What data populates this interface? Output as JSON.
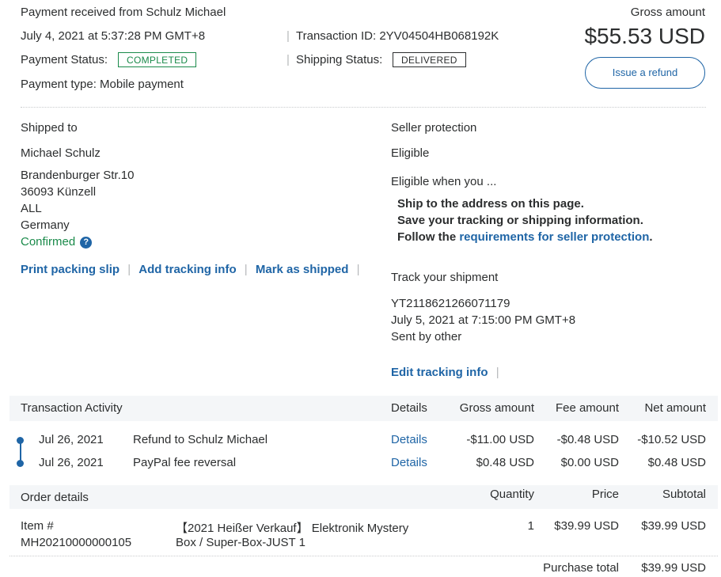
{
  "header": {
    "title": "Payment received from Schulz Michael",
    "datetime": "July 4, 2021 at 5:37:28 PM GMT+8",
    "transaction_id": "Transaction ID: 2YV04504HB068192K",
    "payment_status_label": "Payment Status:",
    "payment_status": "COMPLETED",
    "shipping_status_label": "Shipping Status:",
    "shipping_status": "DELIVERED",
    "payment_type": "Payment type: Mobile payment",
    "gross_amount_label": "Gross amount",
    "gross_amount": "$55.53 USD",
    "refund_button": "Issue a refund",
    "sep": "|"
  },
  "shipping": {
    "heading": "Shipped to",
    "name": "Michael Schulz",
    "address_lines": [
      "Brandenburger Str.10",
      "36093 Künzell",
      "ALL",
      "Germany"
    ],
    "confirmed": "Confirmed",
    "help_icon": "?",
    "actions": [
      "Print packing slip",
      "Add tracking info",
      "Mark as shipped"
    ]
  },
  "seller_protection": {
    "heading": "Seller protection",
    "status": "Eligible",
    "eligible_when": "Eligible when you ...",
    "conditions": [
      "Ship to the address on this page.",
      "Save your tracking or shipping information."
    ],
    "follow_prefix": "Follow the ",
    "follow_link": "requirements for seller protection",
    "follow_suffix": "."
  },
  "tracking": {
    "heading": "Track your shipment",
    "number": "YT2118621266071179",
    "datetime": "July 5, 2021 at 7:15:00 PM GMT+8",
    "carrier": "Sent by other",
    "edit_link": "Edit tracking info"
  },
  "activity": {
    "headers": {
      "title": "Transaction Activity",
      "details": "Details",
      "gross": "Gross amount",
      "fee": "Fee amount",
      "net": "Net amount"
    },
    "rows": [
      {
        "date": "Jul 26, 2021",
        "description": "Refund to Schulz Michael",
        "details": "Details",
        "gross": "-$11.00 USD",
        "fee": "-$0.48 USD",
        "net": "-$10.52 USD"
      },
      {
        "date": "Jul 26, 2021",
        "description": "PayPal fee reversal",
        "details": "Details",
        "gross": "$0.48 USD",
        "fee": "$0.00 USD",
        "net": "$0.48 USD"
      }
    ]
  },
  "order": {
    "headers": {
      "title": "Order details",
      "quantity": "Quantity",
      "price": "Price",
      "subtotal": "Subtotal"
    },
    "item": {
      "label": "Item #",
      "number": "MH20210000000105",
      "name_line1": "【2021 Heißer Verkauf】 Elektronik Mystery",
      "name_line2": "Box / Super-Box-JUST 1",
      "quantity": "1",
      "price": "$39.99 USD",
      "subtotal": "$39.99 USD"
    },
    "purchase_total_label": "Purchase total",
    "purchase_total": "$39.99 USD"
  },
  "colors": {
    "link": "#1f65a6",
    "completed": "#1a8a4a",
    "confirmed": "#1a8a4a",
    "band": "#f4f6f8"
  }
}
